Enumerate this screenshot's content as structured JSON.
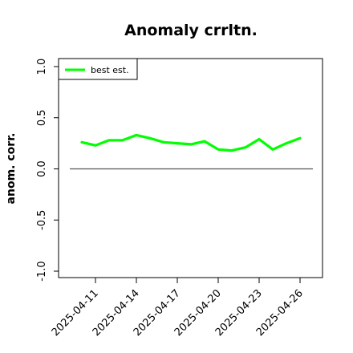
{
  "chart_data": {
    "type": "line",
    "title": "Anomaly crrltn.",
    "xlabel": "",
    "ylabel": "anom. corr.",
    "ylim": [
      -1.0,
      1.0
    ],
    "yticks": [
      "-1.0",
      "-0.5",
      "0.0",
      "0.5",
      "1.0"
    ],
    "x": [
      "2025-04-10",
      "2025-04-11",
      "2025-04-12",
      "2025-04-13",
      "2025-04-14",
      "2025-04-15",
      "2025-04-16",
      "2025-04-17",
      "2025-04-18",
      "2025-04-19",
      "2025-04-20",
      "2025-04-21",
      "2025-04-22",
      "2025-04-23",
      "2025-04-24",
      "2025-04-25",
      "2025-04-26"
    ],
    "xticks": [
      "2025-04-11",
      "2025-04-14",
      "2025-04-17",
      "2025-04-20",
      "2025-04-23",
      "2025-04-26"
    ],
    "series": [
      {
        "name": "best est.",
        "color": "#00ff00",
        "values": [
          0.26,
          0.23,
          0.28,
          0.28,
          0.33,
          0.3,
          0.26,
          0.25,
          0.24,
          0.27,
          0.19,
          0.18,
          0.21,
          0.29,
          0.19,
          0.25,
          0.3
        ]
      }
    ],
    "reference_line": {
      "y": 0.0,
      "color": "#555555"
    },
    "legend": {
      "position": "top-left"
    },
    "grid": false
  }
}
